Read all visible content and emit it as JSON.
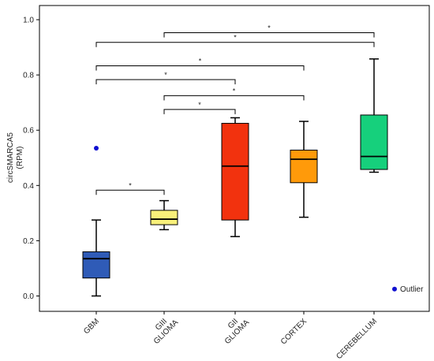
{
  "chart_data": {
    "type": "box",
    "ylabel": "circSMARCA5\n(RPM)",
    "ylim": [
      0,
      1.0
    ],
    "yticks": [
      "0.0",
      "0.2",
      "0.4",
      "0.6",
      "0.8",
      "1.0"
    ],
    "groups": [
      {
        "label": [
          "GBM"
        ],
        "color": "#2f5bb7",
        "whisker_low": 0.0,
        "q1": 0.065,
        "median": 0.135,
        "q3": 0.16,
        "whisker_high": 0.275,
        "outliers": [
          0.535
        ]
      },
      {
        "label": [
          "GIII",
          "GLIOMA"
        ],
        "color": "#f8f07a",
        "whisker_low": 0.24,
        "q1": 0.258,
        "median": 0.278,
        "q3": 0.31,
        "whisker_high": 0.345,
        "outliers": []
      },
      {
        "label": [
          "GII",
          "GLIOMA"
        ],
        "color": "#f2320e",
        "whisker_low": 0.215,
        "q1": 0.275,
        "median": 0.47,
        "q3": 0.625,
        "whisker_high": 0.645,
        "outliers": []
      },
      {
        "label": [
          "CORTEX"
        ],
        "color": "#ff9a0a",
        "whisker_low": 0.285,
        "q1": 0.41,
        "median": 0.495,
        "q3": 0.528,
        "whisker_high": 0.632,
        "outliers": []
      },
      {
        "label": [
          "CEREBELLUM"
        ],
        "color": "#16d07c",
        "whisker_low": 0.448,
        "q1": 0.458,
        "median": 0.505,
        "q3": 0.655,
        "whisker_high": 0.858,
        "outliers": []
      }
    ],
    "significance": [
      {
        "from": 1,
        "to": 4,
        "y": 0.953,
        "label": "*"
      },
      {
        "from": 0,
        "to": 4,
        "y": 0.918,
        "label": "*"
      },
      {
        "from": 0,
        "to": 3,
        "y": 0.833,
        "label": "*"
      },
      {
        "from": 0,
        "to": 2,
        "y": 0.783,
        "label": "*"
      },
      {
        "from": 1,
        "to": 3,
        "y": 0.725,
        "label": "*"
      },
      {
        "from": 1,
        "to": 2,
        "y": 0.675,
        "label": "*"
      },
      {
        "from": 0,
        "to": 1,
        "y": 0.383,
        "label": "*"
      }
    ],
    "legend": {
      "label": "Outlier",
      "color": "#1010d0",
      "position": "bottom-right"
    }
  }
}
